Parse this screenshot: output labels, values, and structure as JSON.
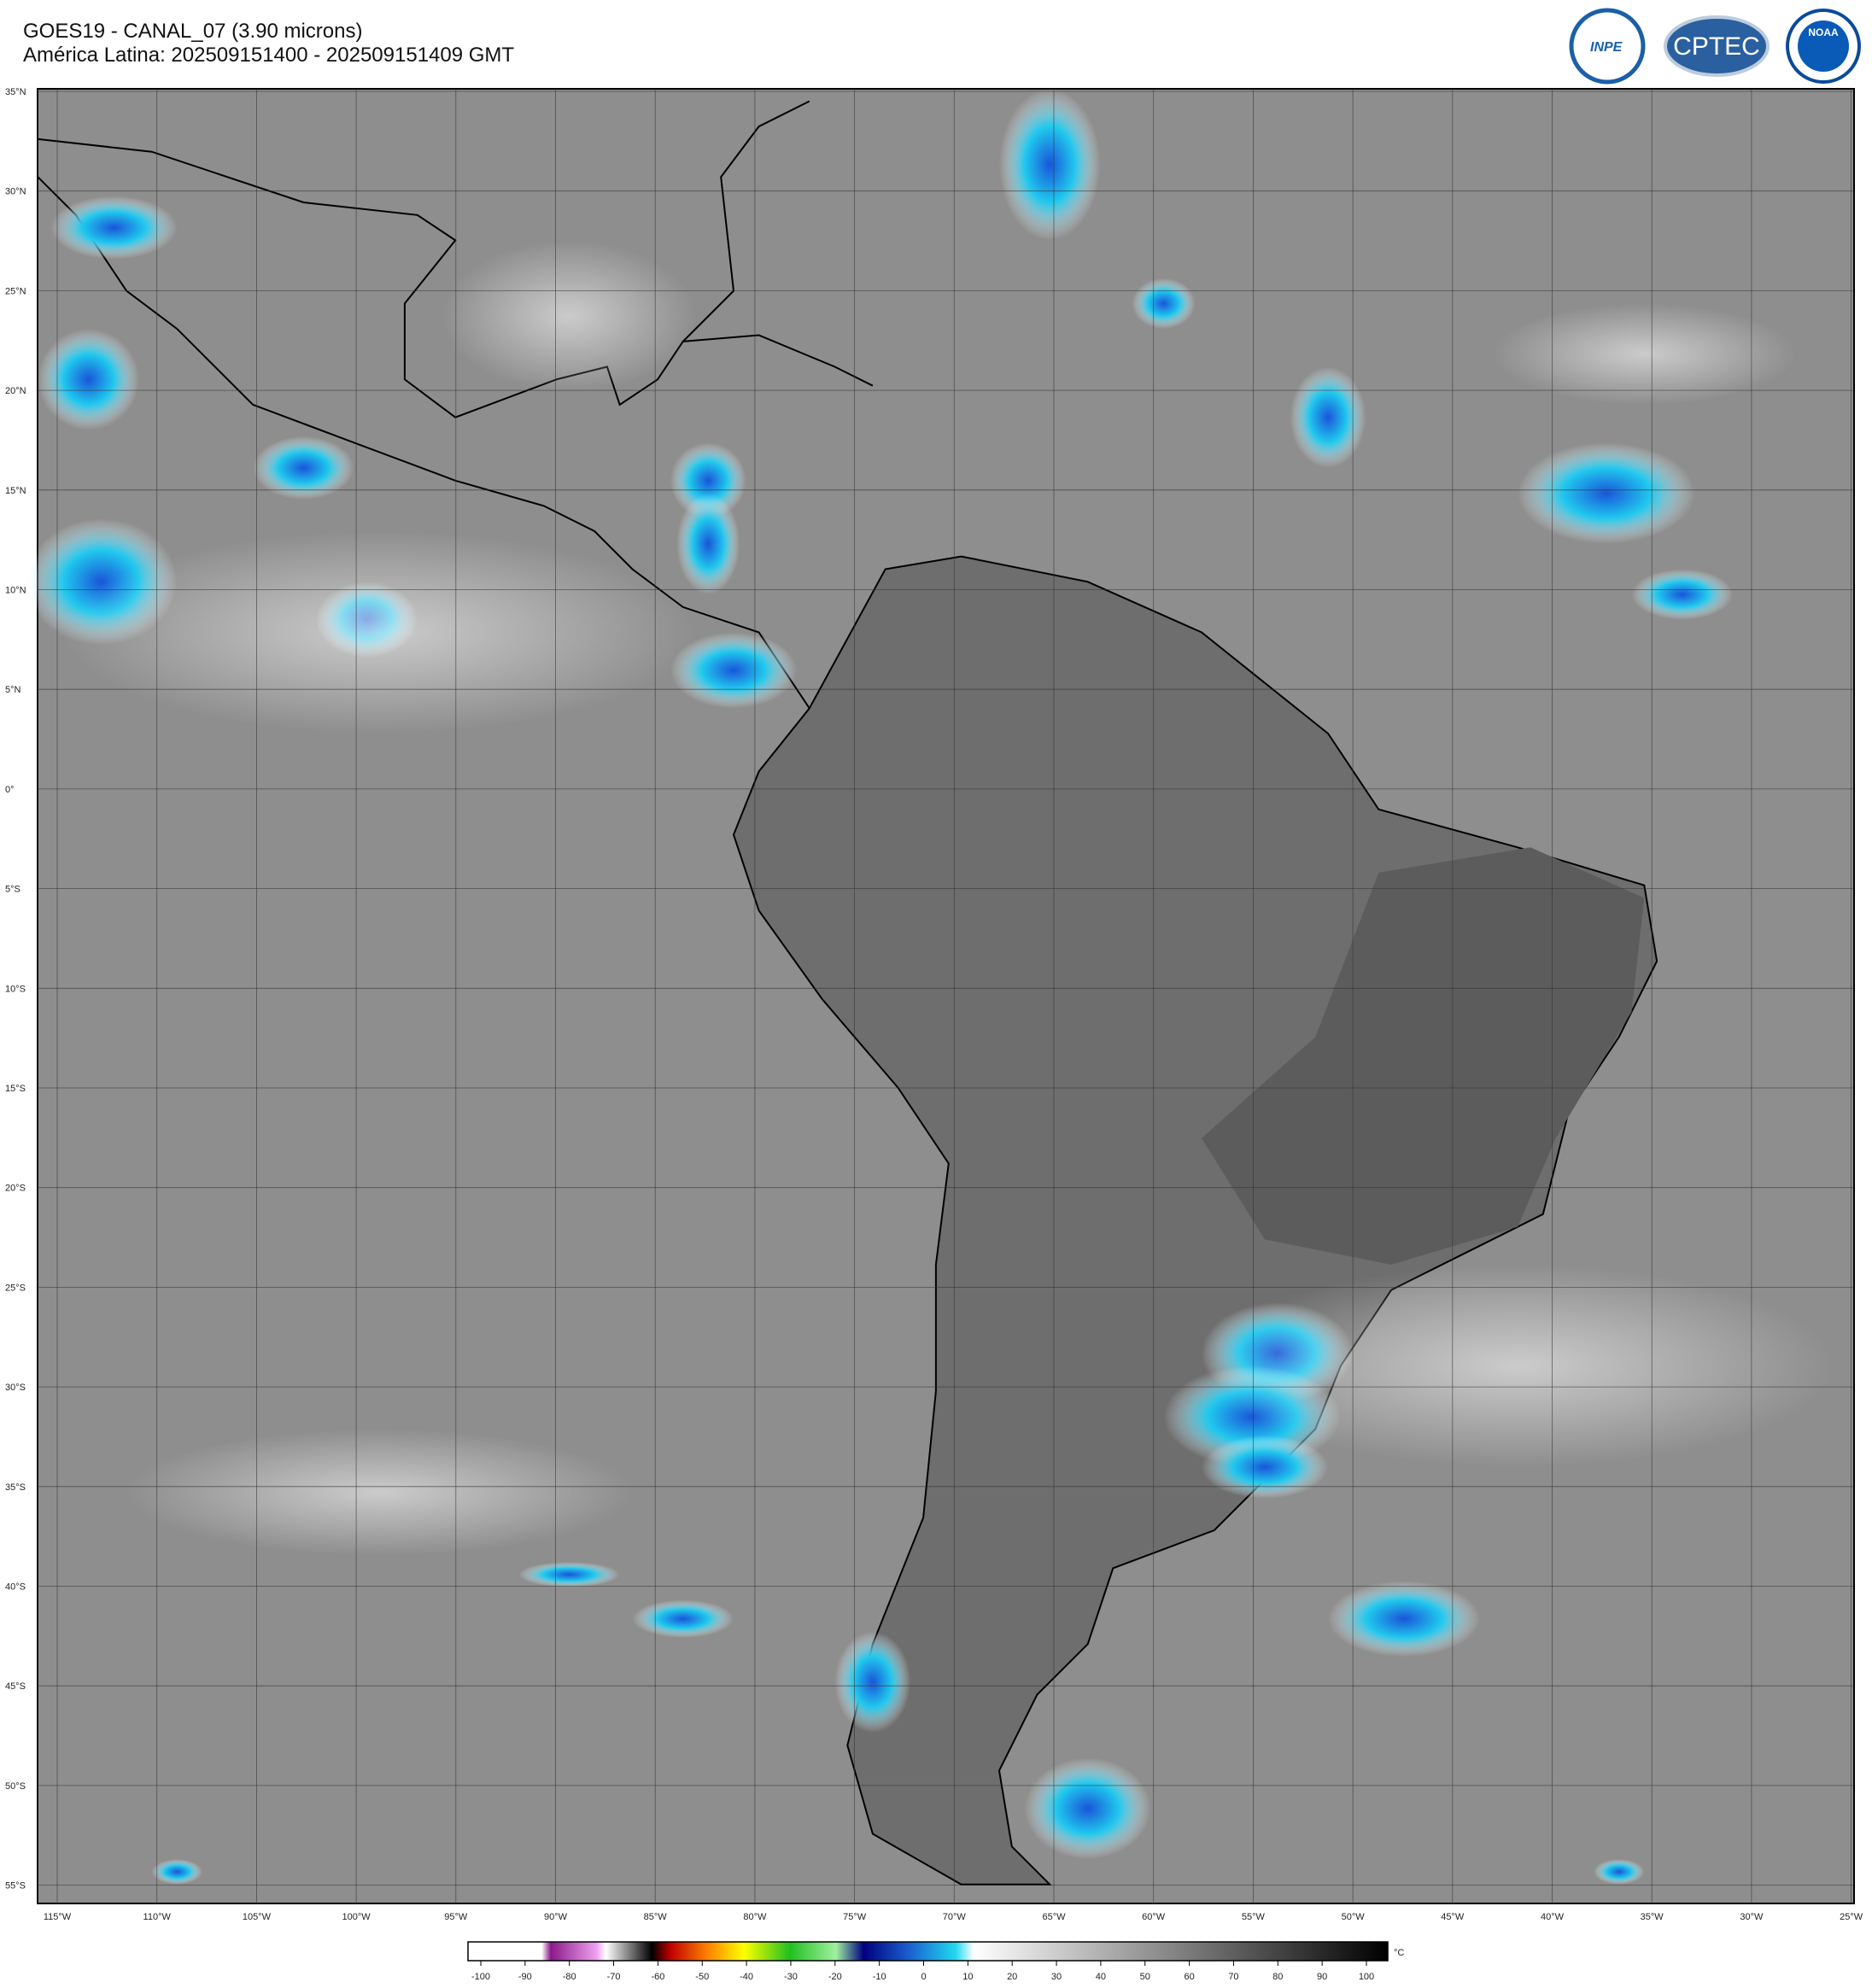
{
  "header": {
    "line1": "GOES19 - CANAL_07 (3.90 microns)",
    "line2": "América Latina: 202509151400 - 202509151409 GMT"
  },
  "logos": [
    "INPE",
    "CPTEC",
    "NOAA"
  ],
  "map": {
    "lat_labels": [
      "35°N",
      "30°N",
      "25°N",
      "20°N",
      "15°N",
      "10°N",
      "5°N",
      "0°",
      "5°S",
      "10°S",
      "15°S",
      "20°S",
      "25°S",
      "30°S",
      "35°S",
      "40°S",
      "45°S",
      "50°S",
      "55°S"
    ],
    "lon_labels": [
      "115°W",
      "110°W",
      "105°W",
      "100°W",
      "95°W",
      "90°W",
      "85°W",
      "80°W",
      "75°W",
      "70°W",
      "65°W",
      "60°W",
      "55°W",
      "50°W",
      "45°W",
      "40°W",
      "35°W",
      "30°W",
      "25°W"
    ]
  },
  "colorbar": {
    "ticks": [
      -100,
      -90,
      -80,
      -70,
      -60,
      -50,
      -40,
      -30,
      -20,
      -10,
      0,
      10,
      20,
      30,
      40,
      50,
      60,
      70,
      80,
      90,
      100
    ],
    "unit": "°C"
  }
}
